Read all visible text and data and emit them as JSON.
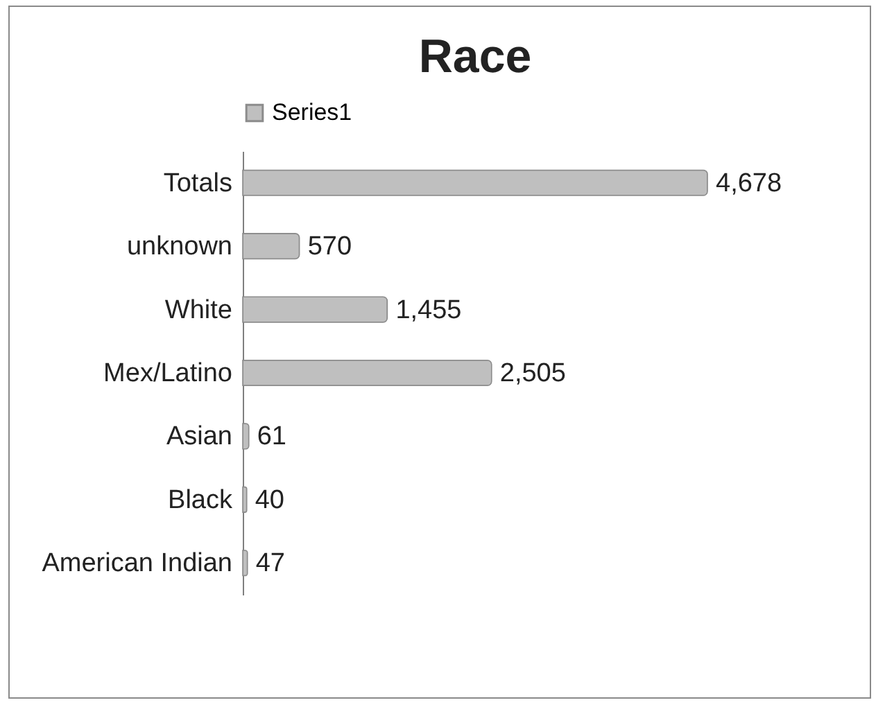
{
  "chart_data": {
    "type": "bar",
    "title": "Race",
    "orientation": "horizontal",
    "legend": "top",
    "categories": [
      "Totals",
      "unknown",
      "White",
      "Mex/Latino",
      "Asian",
      "Black",
      "American Indian"
    ],
    "series": [
      {
        "name": "Series1",
        "color": "#bfbfbf",
        "values": [
          4678,
          570,
          1455,
          2505,
          61,
          40,
          47
        ],
        "value_labels": [
          "4,678",
          "570",
          "1,455",
          "2,505",
          "61",
          "40",
          "47"
        ]
      }
    ]
  }
}
